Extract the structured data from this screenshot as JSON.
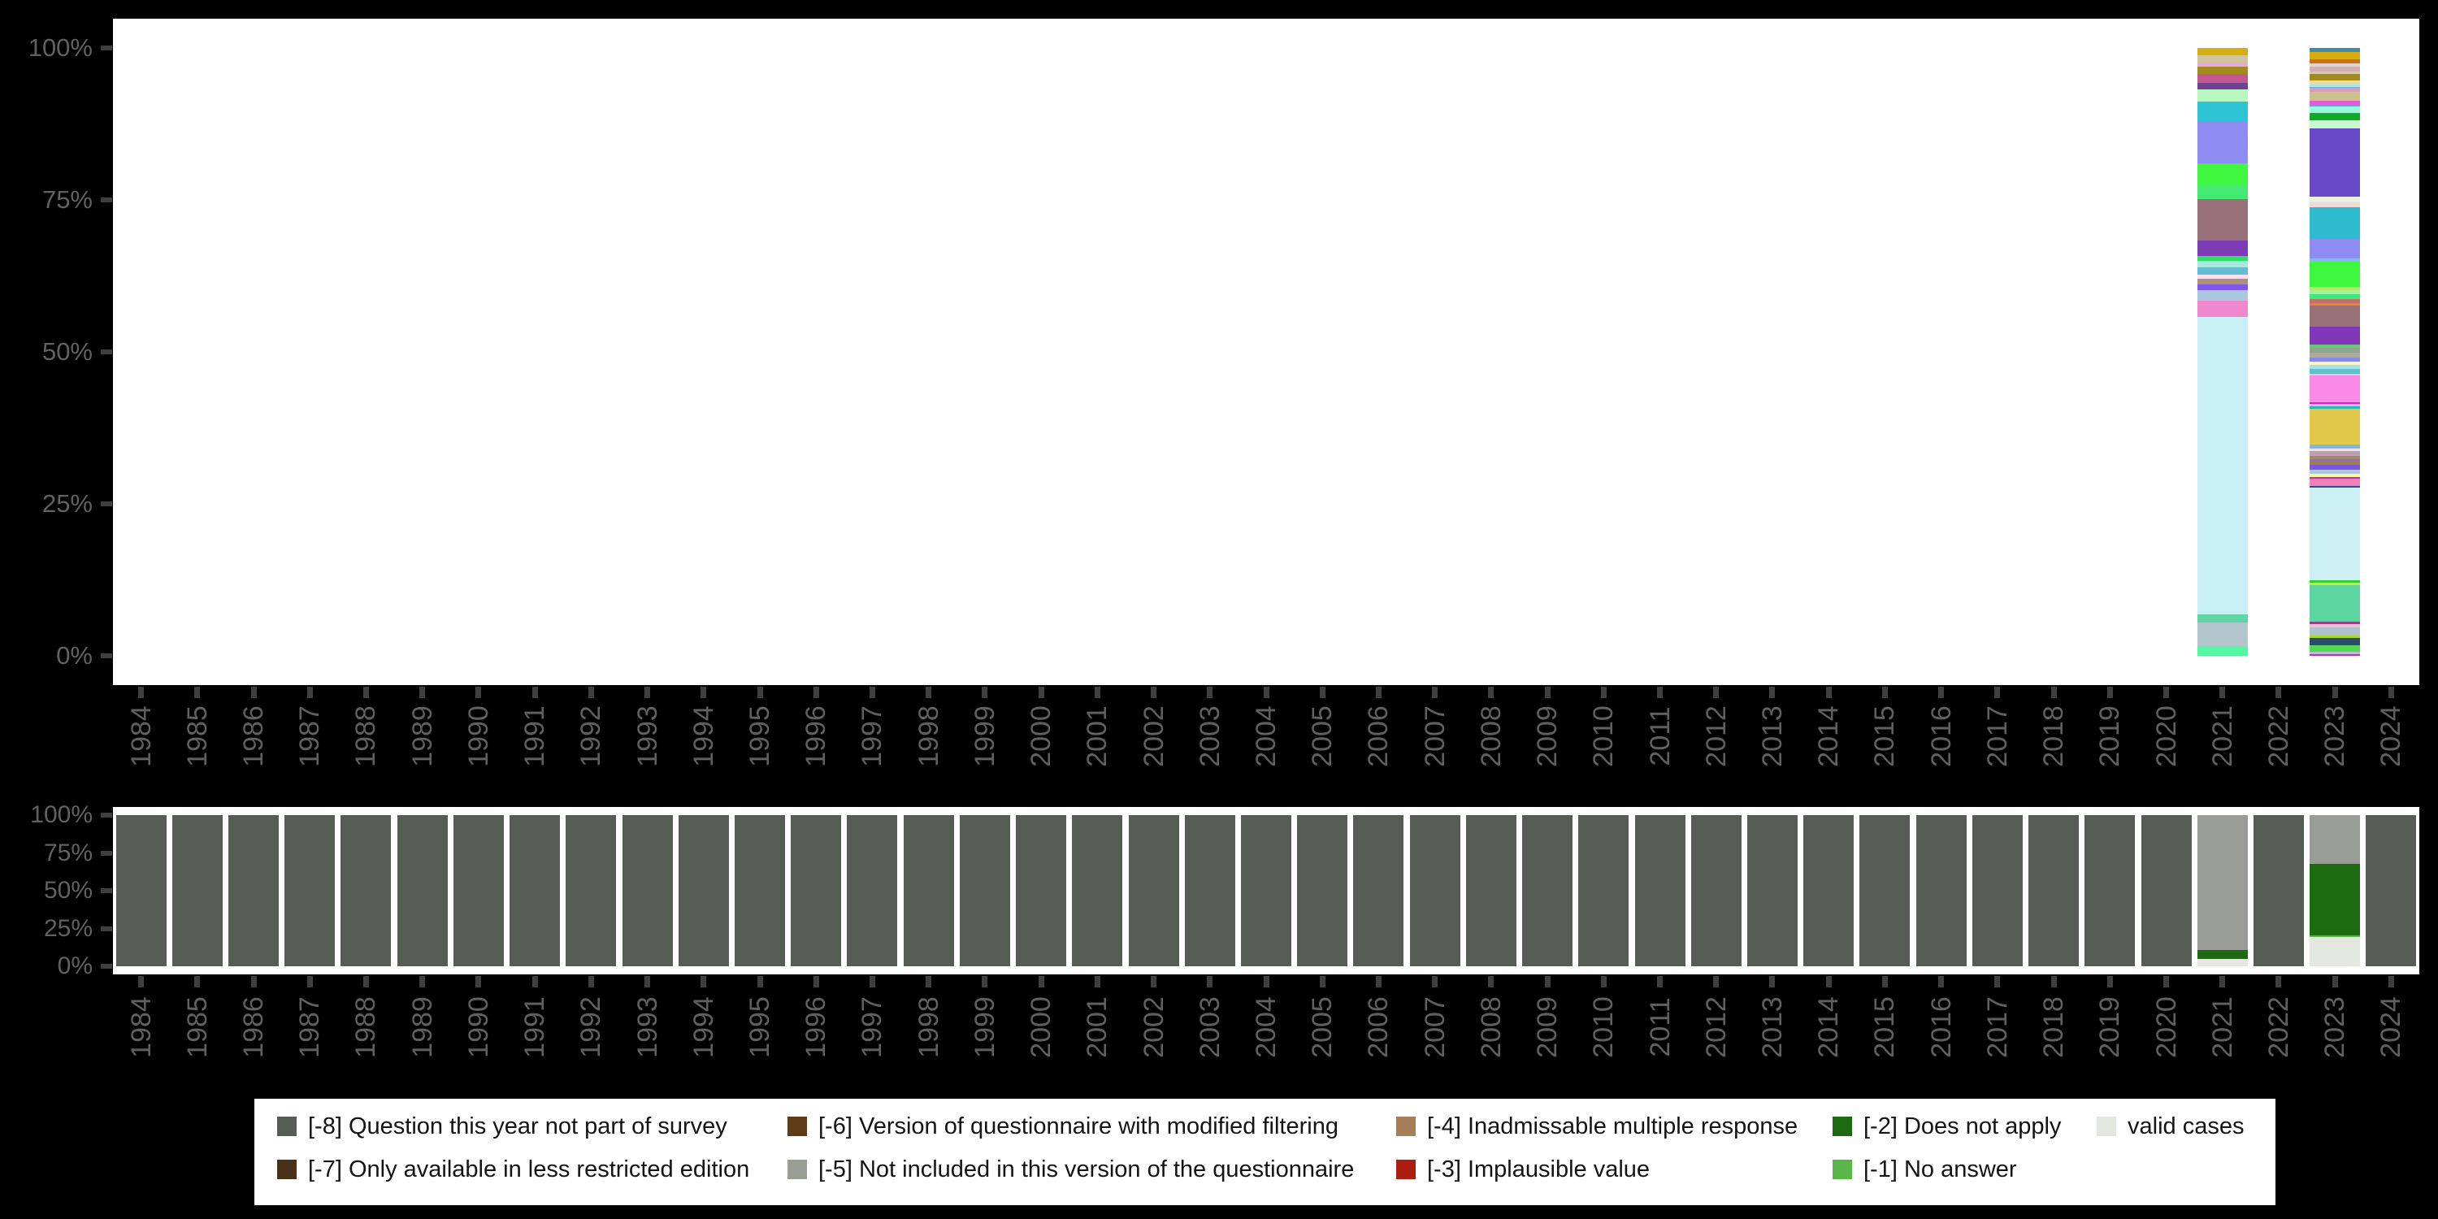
{
  "colors": {
    "background": "#000000",
    "plot_background": "#ffffff",
    "axis_label": "#606060",
    "tick": "#3f3f3f",
    "legend_background": "#ffffff",
    "legend_text": "#141414"
  },
  "years": [
    "1984",
    "1985",
    "1986",
    "1987",
    "1988",
    "1989",
    "1990",
    "1991",
    "1992",
    "1993",
    "1994",
    "1995",
    "1996",
    "1997",
    "1998",
    "1999",
    "2000",
    "2001",
    "2002",
    "2003",
    "2004",
    "2005",
    "2006",
    "2007",
    "2008",
    "2009",
    "2010",
    "2011",
    "2012",
    "2013",
    "2014",
    "2015",
    "2016",
    "2017",
    "2018",
    "2019",
    "2020",
    "2021",
    "2022",
    "2023",
    "2024"
  ],
  "y_tick_labels": [
    "100%",
    "75%",
    "50%",
    "25%",
    "0%"
  ],
  "legend": {
    "items": [
      {
        "label": "[-8] Question this year not part of survey",
        "key": "-8",
        "color": "#555d54",
        "column": 0,
        "row": 0
      },
      {
        "label": "[-7] Only available in less restricted edition",
        "key": "-7",
        "color": "#4a3018",
        "column": 0,
        "row": 1
      },
      {
        "label": "[-6] Version of questionnaire with modified filtering",
        "key": "-6",
        "color": "#5e3a15",
        "column": 1,
        "row": 0
      },
      {
        "label": "[-5] Not included in this version of the questionnaire",
        "key": "-5",
        "color": "#999d95",
        "column": 1,
        "row": 1
      },
      {
        "label": "[-4] Inadmissable multiple response",
        "key": "-4",
        "color": "#a57f58",
        "column": 2,
        "row": 0
      },
      {
        "label": "[-3] Implausible value",
        "key": "-3",
        "color": "#ae1d12",
        "column": 2,
        "row": 1
      },
      {
        "label": "[-2] Does not apply",
        "key": "-2",
        "color": "#1d6b10",
        "column": 3,
        "row": 0
      },
      {
        "label": "[-1] No answer",
        "key": "-1",
        "color": "#5ab648",
        "column": 3,
        "row": 1
      },
      {
        "label": "valid cases",
        "key": "valid",
        "color": "#e3e7e0",
        "column": 4,
        "row": 0
      }
    ]
  },
  "chart_data": [
    {
      "type": "bar",
      "subtype": "stacked_percent",
      "name": "value-distribution-by-year",
      "x_ref": "years",
      "yticks": [
        "0%",
        "25%",
        "50%",
        "75%",
        "100%"
      ],
      "ylim": [
        0,
        100
      ],
      "grid": false,
      "bars": {
        "2021": [
          [
            "#d6ad0e",
            9
          ],
          [
            "#cfc49c",
            9
          ],
          [
            "#e6a9d9",
            6
          ],
          [
            "#a38c1d",
            9
          ],
          [
            "#c2588f",
            11
          ],
          [
            "#6f4391",
            8
          ],
          [
            "#b9f7c0",
            15
          ],
          [
            "#2fc3d6",
            26
          ],
          [
            "#8e8cf2",
            52
          ],
          [
            "#3ef63e",
            28
          ],
          [
            "#44e971",
            17
          ],
          [
            "#987278",
            52
          ],
          [
            "#7d3cb5",
            20
          ],
          [
            "#2ee061",
            6
          ],
          [
            "#a9e9e4",
            8
          ],
          [
            "#63bdd5",
            9
          ],
          [
            "#fbdff0",
            5
          ],
          [
            "#ac9179",
            8
          ],
          [
            "#8055e9",
            7
          ],
          [
            "#a9c8e0",
            13
          ],
          [
            "#ef88cc",
            20
          ],
          [
            "#c9f0f4",
            375
          ],
          [
            "#5fd4a4",
            10
          ],
          [
            "#b2c4cc",
            30
          ],
          [
            "#55f7a0",
            12
          ]
        ],
        "2023": [
          [
            "#3e8ca8",
            5
          ],
          [
            "#d8ac10",
            9
          ],
          [
            "#cc6e14",
            5
          ],
          [
            "#d8d8d0",
            4
          ],
          [
            "#d0aeb4",
            6
          ],
          [
            "#d8c8a8",
            4
          ],
          [
            "#a38a1c",
            8
          ],
          [
            "#f0d8a0",
            5
          ],
          [
            "#a0ecec",
            3
          ],
          [
            "#b09ae8",
            2
          ],
          [
            "#d8a0a8",
            4
          ],
          [
            "#ccc08c",
            11
          ],
          [
            "#e659d9",
            5
          ],
          [
            "#40b8c0",
            2
          ],
          [
            "#98f8d8",
            8
          ],
          [
            "#12a828",
            10
          ],
          [
            "#c8f8d0",
            10
          ],
          [
            "#6a49c9",
            85
          ],
          [
            "#e9f0e0",
            7
          ],
          [
            "#f0d8d8",
            6
          ],
          [
            "#30bcd0",
            40
          ],
          [
            "#8e8cf2",
            24
          ],
          [
            "#88b4f8",
            5
          ],
          [
            "#3ef63e",
            31
          ],
          [
            "#b8e868",
            4
          ],
          [
            "#a8f0a0",
            5
          ],
          [
            "#40e880",
            6
          ],
          [
            "#c07068",
            5
          ],
          [
            "#f08030",
            3
          ],
          [
            "#987278",
            27
          ],
          [
            "#8038b8",
            22
          ],
          [
            "#68c878",
            4
          ],
          [
            "#88a890",
            6
          ],
          [
            "#b0a898",
            7
          ],
          [
            "#8888e8",
            5
          ],
          [
            "#f8f8c0",
            4
          ],
          [
            "#a8e0e8",
            5
          ],
          [
            "#60c0cc",
            6
          ],
          [
            "#c0d8e8",
            2
          ],
          [
            "#f98ae8",
            34
          ],
          [
            "#e020c0",
            2
          ],
          [
            "#c8c0f0",
            3
          ],
          [
            "#28b8b0",
            3
          ],
          [
            "#e2c84a",
            44
          ],
          [
            "#80b8e0",
            5
          ],
          [
            "#f0e0e8",
            4
          ],
          [
            "#c0a0b0",
            6
          ],
          [
            "#a08868",
            4
          ],
          [
            "#9068d8",
            3
          ],
          [
            "#a08040",
            4
          ],
          [
            "#7858e0",
            6
          ],
          [
            "#b0c4e0",
            5
          ],
          [
            "#f8f8a0",
            4
          ],
          [
            "#d028a8",
            2
          ],
          [
            "#f080b8",
            9
          ],
          [
            "#3848a0",
            2
          ],
          [
            "#cdf0f2",
            116
          ],
          [
            "#30d030",
            3
          ],
          [
            "#c8e840",
            3
          ],
          [
            "#5cd4a0",
            46
          ],
          [
            "#d020a0",
            3
          ],
          [
            "#e8c0d8",
            4
          ],
          [
            "#b0c0cc",
            10
          ],
          [
            "#a8d820",
            3
          ],
          [
            "#2c4c6c",
            10
          ],
          [
            "#50d850",
            8
          ],
          [
            "#c0b8d8",
            3
          ],
          [
            "#c030b0",
            2
          ]
        ]
      }
    },
    {
      "type": "bar",
      "subtype": "stacked_percent",
      "name": "missing-categories-by-year",
      "x_ref": "years",
      "yticks": [
        "0%",
        "25%",
        "50%",
        "75%",
        "100%"
      ],
      "ylim": [
        0,
        100
      ],
      "grid": false,
      "category_colors": {
        "-8": "#555d54",
        "-7": "#4a3018",
        "-6": "#5e3a15",
        "-5": "#999d95",
        "-4": "#a57f58",
        "-3": "#ae1d12",
        "-2": "#1d6b10",
        "-1": "#5ab648",
        "valid": "#e3e7e0"
      },
      "default_bar": [
        [
          "-8",
          100
        ]
      ],
      "bars": {
        "2021": [
          [
            "-5",
            89
          ],
          [
            "-2",
            6
          ],
          [
            "valid",
            5
          ]
        ],
        "2023": [
          [
            "-5",
            32
          ],
          [
            "-2",
            47.5
          ],
          [
            "-1",
            1.2
          ],
          [
            "valid",
            19.3
          ]
        ]
      }
    }
  ]
}
